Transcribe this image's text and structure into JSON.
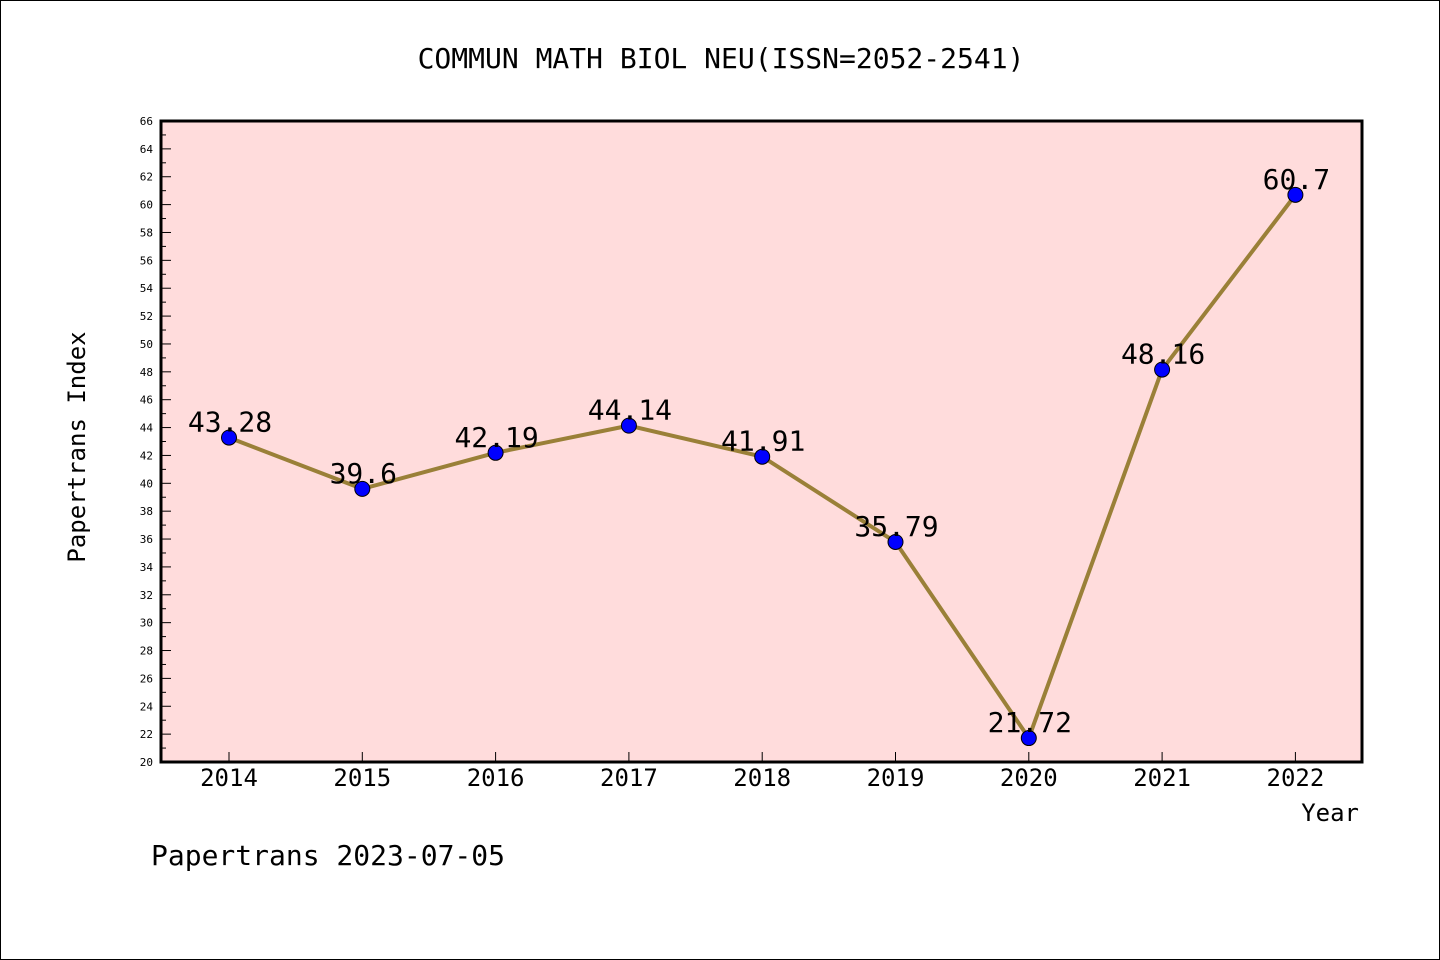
{
  "chart_data": {
    "type": "line",
    "title": "COMMUN MATH BIOL NEU(ISSN=2052-2541)",
    "xlabel": "Year",
    "ylabel": "Papertrans Index",
    "categories": [
      "2014",
      "2015",
      "2016",
      "2017",
      "2018",
      "2019",
      "2020",
      "2021",
      "2022"
    ],
    "series": [
      {
        "values": [
          43.28,
          39.6,
          42.19,
          44.14,
          41.91,
          35.79,
          21.72,
          48.16,
          60.7
        ],
        "labels": [
          "43.28",
          "39.6",
          "42.19",
          "44.14",
          "41.91",
          "35.79",
          "21.72",
          "48.16",
          "60.7"
        ]
      }
    ],
    "ylim": [
      20,
      66
    ],
    "ytick_step": 2,
    "grid": false,
    "legend": "none",
    "colors": {
      "plot_background": "#ffdcdc",
      "line": "#9a8038",
      "marker": "#0000ff"
    }
  },
  "footer": "Papertrans 2023-07-05"
}
